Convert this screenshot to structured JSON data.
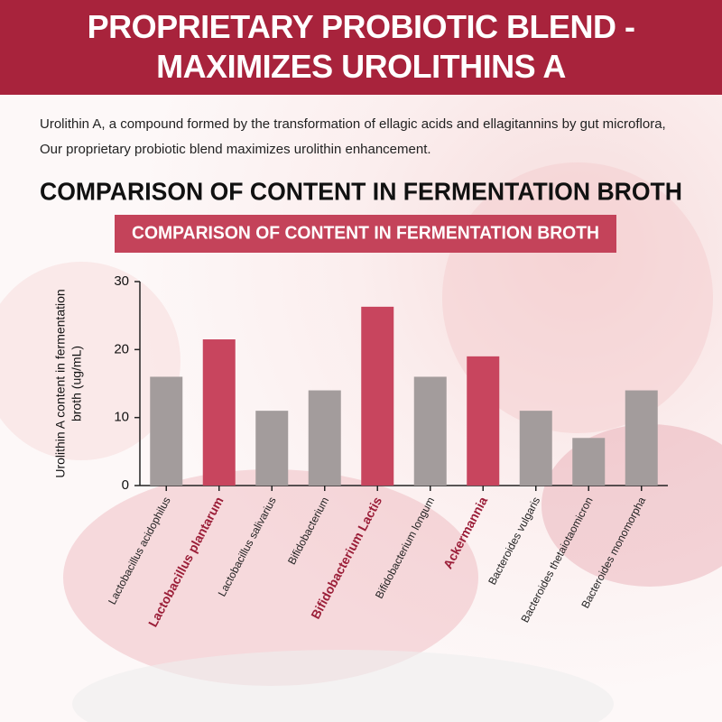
{
  "chart_data": {
    "type": "bar",
    "title": "PROPRIETARY PROBIOTIC BLEND - MAXIMIZES UROLITHINS A",
    "description": "Urolithin A, a compound formed by the transformation of ellagic acids and ellagitannins by gut microflora, Our proprietary probiotic blend maximizes urolithin enhancement.",
    "heading": "COMPARISON OF CONTENT IN FERMENTATION BROTH",
    "subtitle": "COMPARISON OF CONTENT IN FERMENTATION BROTH",
    "ylabel": [
      "Urolithin A content in fermentation",
      "broth (ug/mL)"
    ],
    "categories": [
      "Lactobacillus acidophilus",
      "Lactobacillus plantarum",
      "Lactobacillus salivarius",
      "Bifidobacterium",
      "Bifidobacterium Lactis",
      "Bifidobacterium longum",
      "Ackermannia",
      "Bacteroides vulgaris",
      "Bacteroides thetaiotaomicron",
      "Bacteroides monomorpha"
    ],
    "values": [
      16,
      21.5,
      11,
      14,
      26.3,
      16,
      19,
      11,
      7,
      14
    ],
    "colors": [
      "#a39c9c",
      "#c8455e",
      "#a39c9c",
      "#a39c9c",
      "#c8455e",
      "#a39c9c",
      "#c8455e",
      "#a39c9c",
      "#a39c9c",
      "#a39c9c"
    ],
    "label_colors": [
      "#222222",
      "#9b1e38",
      "#222222",
      "#222222",
      "#9b1e38",
      "#222222",
      "#9b1e38",
      "#222222",
      "#222222",
      "#222222"
    ],
    "ylim": [
      0,
      30
    ],
    "yticks": [
      0,
      10,
      20,
      30
    ],
    "grid": false
  }
}
